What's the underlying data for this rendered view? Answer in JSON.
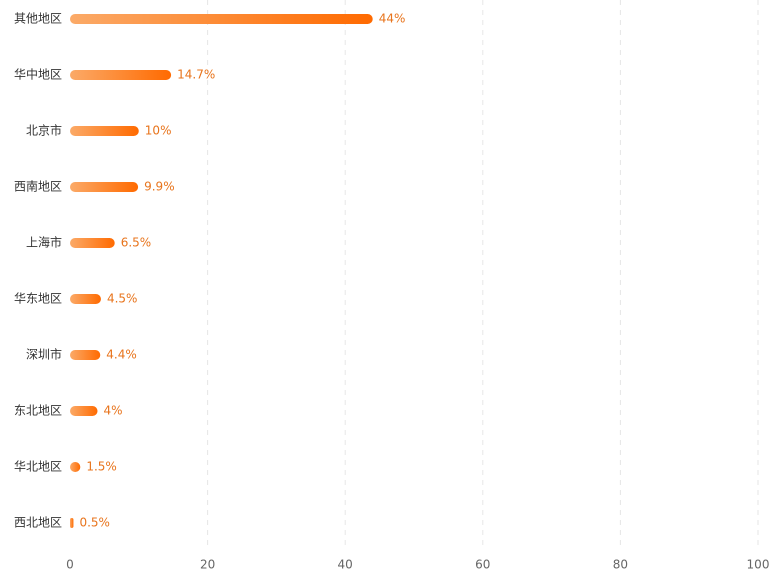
{
  "chart_data": {
    "type": "bar",
    "orientation": "horizontal",
    "categories": [
      "其他地区",
      "华中地区",
      "北京市",
      "西南地区",
      "上海市",
      "华东地区",
      "深圳市",
      "东北地区",
      "华北地区",
      "西北地区"
    ],
    "values": [
      44,
      14.7,
      10,
      9.9,
      6.5,
      4.5,
      4.4,
      4,
      1.5,
      0.5
    ],
    "value_labels": [
      "44%",
      "14.7%",
      "10%",
      "9.9%",
      "6.5%",
      "4.5%",
      "4.4%",
      "4%",
      "1.5%",
      "0.5%"
    ],
    "gradient": [
      "#fbaa68",
      "#ff6a00"
    ],
    "xlim": [
      0,
      100
    ],
    "xticks": [
      0,
      20,
      40,
      60,
      80,
      100
    ],
    "grid": true
  }
}
